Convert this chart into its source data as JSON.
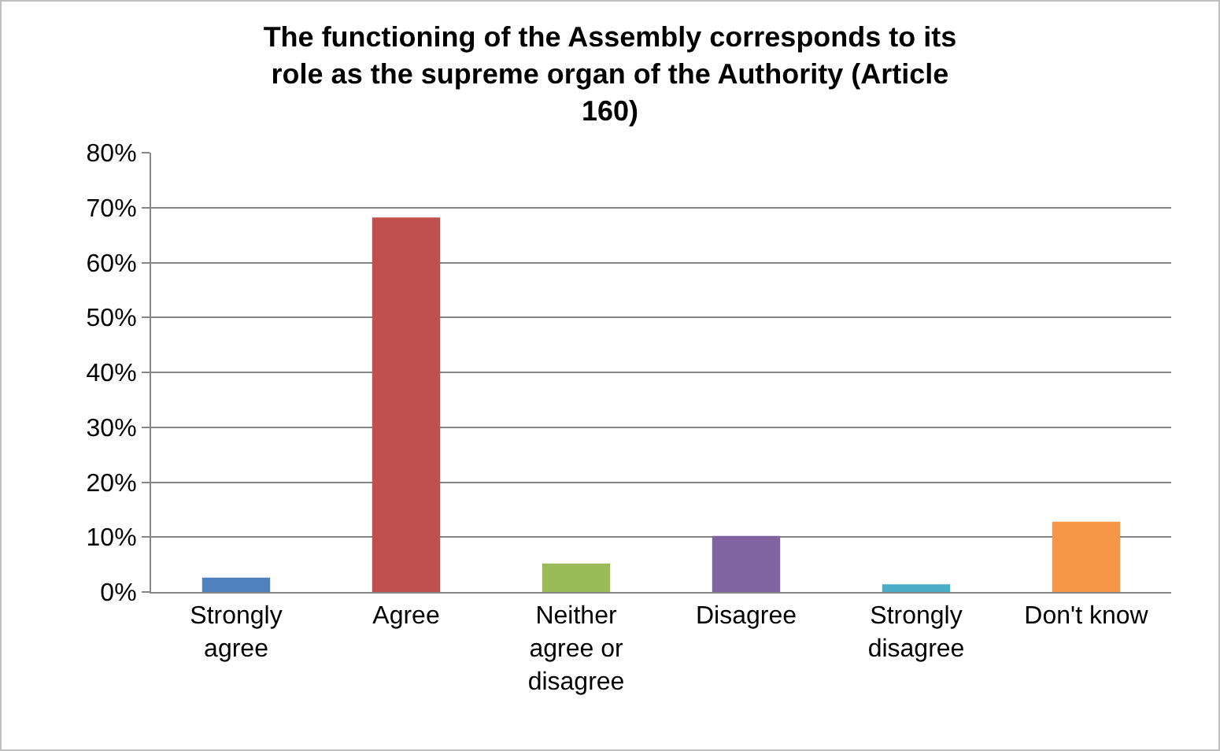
{
  "chart_data": {
    "type": "bar",
    "title": "The functioning of the Assembly corresponds to its\nrole as the supreme organ of the Authority (Article\n160)",
    "categories": [
      "Strongly\nagree",
      "Agree",
      "Neither\nagree or\ndisagree",
      "Disagree",
      "Strongly\ndisagree",
      "Don't know"
    ],
    "values": [
      2.6,
      68.2,
      5.2,
      10.2,
      1.4,
      12.8
    ],
    "colors": [
      "#4f81bd",
      "#c0504d",
      "#9bbb59",
      "#8064a2",
      "#4bacc6",
      "#f79646"
    ],
    "ylim": [
      0,
      80
    ],
    "yticks": [
      {
        "value": 0,
        "label": "0%"
      },
      {
        "value": 10,
        "label": "10%"
      },
      {
        "value": 20,
        "label": "20%"
      },
      {
        "value": 30,
        "label": "30%"
      },
      {
        "value": 40,
        "label": "40%"
      },
      {
        "value": 50,
        "label": "50%"
      },
      {
        "value": 60,
        "label": "60%"
      },
      {
        "value": 70,
        "label": "70%"
      },
      {
        "value": 80,
        "label": "80%"
      }
    ],
    "grid": "y"
  }
}
